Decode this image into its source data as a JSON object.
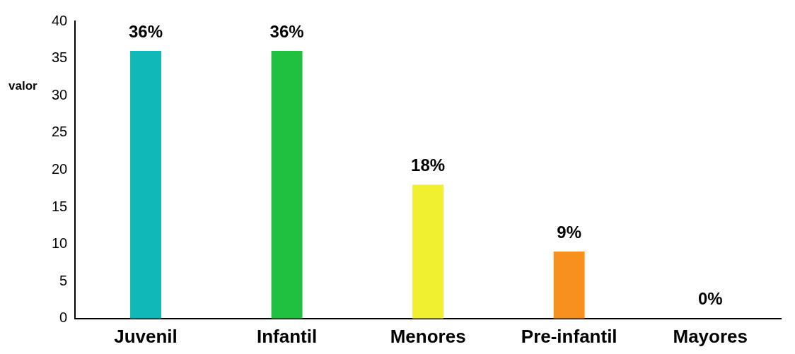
{
  "chart_data": {
    "type": "bar",
    "ylabel": "valor",
    "categories": [
      "Juvenil",
      "Infantil",
      "Menores",
      "Pre-infantil",
      "Mayores"
    ],
    "values": [
      36,
      36,
      18,
      9,
      0
    ],
    "colors": [
      "#10b8b8",
      "#20c040",
      "#f0f030",
      "#f89020",
      "#800080"
    ],
    "value_labels": [
      "36%",
      "36%",
      "18%",
      "9%",
      "0%"
    ],
    "ylim": [
      0,
      40
    ],
    "yticks": [
      0,
      5,
      10,
      15,
      20,
      25,
      30,
      35,
      40
    ],
    "grid": false,
    "legend": false
  }
}
